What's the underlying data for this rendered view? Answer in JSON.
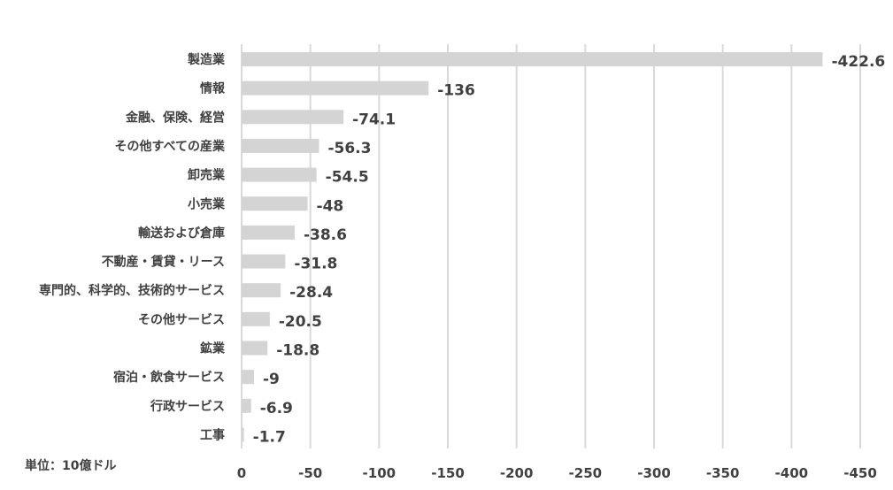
{
  "chart_data": {
    "type": "bar",
    "orientation": "horizontal",
    "categories": [
      "製造業",
      "情報",
      "金融、保険、経営",
      "その他すべての産業",
      "卸売業",
      "小売業",
      "輸送および倉庫",
      "不動産・賃貸・リース",
      "専門的、科学的、技術的サービス",
      "その他サービス",
      "鉱業",
      "宿泊・飲食サービス",
      "行政サービス",
      "工事"
    ],
    "values": [
      -422.6,
      -136,
      -74.1,
      -56.3,
      -54.5,
      -48,
      -38.6,
      -31.8,
      -28.4,
      -20.5,
      -18.8,
      -9,
      -6.9,
      -1.7
    ],
    "data_labels": [
      "-422.6",
      "-136",
      "-74.1",
      "-56.3",
      "-54.5",
      "-48",
      "-38.6",
      "-31.8",
      "-28.4",
      "-20.5",
      "-18.8",
      "-9",
      "-6.9",
      "-1.7"
    ],
    "xlim": [
      0,
      -450
    ],
    "x_ticks": [
      "0",
      "-50",
      "-100",
      "-150",
      "-200",
      "-250",
      "-300",
      "-350",
      "-400",
      "-450"
    ],
    "x_tick_values": [
      0,
      -50,
      -100,
      -150,
      -200,
      -250,
      -300,
      -350,
      -400,
      -450
    ],
    "unit_note": "単位：10億ドル",
    "grid": "vertical",
    "bar_color": "#d4d4d4",
    "grid_color": "#d9d9d9",
    "text_color": "#404040"
  }
}
